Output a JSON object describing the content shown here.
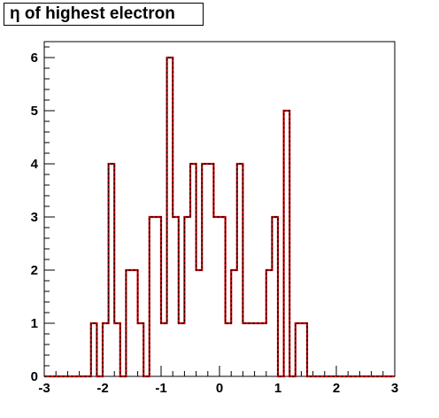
{
  "chart_data": {
    "type": "histogram",
    "title": "η of highest electron",
    "xlabel": "",
    "ylabel": "",
    "xlim": [
      -3,
      3
    ],
    "ylim": [
      0,
      6.3
    ],
    "bin_count": 60,
    "bin_width": 0.1,
    "x_ticks": [
      "-3",
      "-2",
      "-1",
      "0",
      "1",
      "2",
      "3"
    ],
    "y_ticks": [
      "0",
      "1",
      "2",
      "3",
      "4",
      "5",
      "6"
    ],
    "values": [
      0,
      0,
      0,
      0,
      0,
      0,
      0,
      0,
      1,
      0,
      1,
      4,
      1,
      0,
      2,
      2,
      1,
      0,
      3,
      3,
      1,
      6,
      3,
      1,
      3,
      4,
      2,
      4,
      4,
      3,
      3,
      1,
      2,
      4,
      1,
      1,
      1,
      1,
      2,
      3,
      0,
      5,
      0,
      1,
      1,
      0,
      0,
      0,
      0,
      0,
      0,
      0,
      0,
      0,
      0,
      0,
      0,
      0,
      0,
      0
    ],
    "series": [
      {
        "name": "",
        "color": "#cc0000",
        "style": "solid"
      },
      {
        "name": "",
        "color": "#000000",
        "style": "dashed"
      }
    ],
    "grid": false
  }
}
